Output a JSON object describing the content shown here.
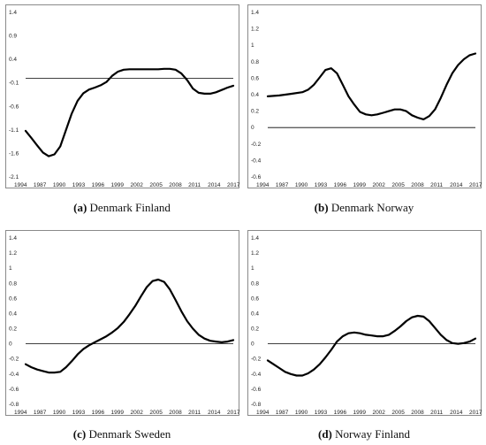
{
  "chart_data": [
    {
      "type": "line",
      "caption_letter": "(a)",
      "caption_text": " Denmark Finland",
      "x_ticks": [
        "1994",
        "1987",
        "1990",
        "1993",
        "1996",
        "1999",
        "2002",
        "2005",
        "2008",
        "2011",
        "2014",
        "2017"
      ],
      "y_ticks": [
        "1.4",
        "0.9",
        "0.4",
        "-0.1",
        "-0.6",
        "-1.1",
        "-1.6",
        "-2.1"
      ],
      "ylim": [
        -2.1,
        1.4
      ],
      "xlim": [
        1984,
        2020
      ],
      "series": [
        {
          "color": "#000000",
          "x": [
            1984,
            1985,
            1986,
            1987,
            1988,
            1989,
            1990,
            1991,
            1992,
            1993,
            1994,
            1995,
            1996,
            1997,
            1998,
            1999,
            2000,
            2001,
            2002,
            2003,
            2005,
            2007,
            2008,
            2009,
            2010,
            2011,
            2012,
            2013,
            2014,
            2015,
            2016,
            2017,
            2018,
            2019,
            2020
          ],
          "y": [
            -1.12,
            -1.27,
            -1.43,
            -1.58,
            -1.66,
            -1.62,
            -1.45,
            -1.1,
            -0.75,
            -0.48,
            -0.32,
            -0.24,
            -0.2,
            -0.15,
            -0.08,
            0.05,
            0.14,
            0.18,
            0.19,
            0.19,
            0.19,
            0.19,
            0.2,
            0.2,
            0.18,
            0.1,
            -0.04,
            -0.22,
            -0.31,
            -0.33,
            -0.33,
            -0.3,
            -0.25,
            -0.2,
            -0.16
          ]
        }
      ]
    },
    {
      "type": "line",
      "caption_letter": "(b)",
      "caption_text": " Denmark Norway",
      "x_ticks": [
        "1994",
        "1987",
        "1990",
        "1993",
        "1996",
        "1999",
        "2002",
        "2005",
        "2008",
        "2011",
        "2014",
        "2017"
      ],
      "y_ticks": [
        "1.4",
        "1.2",
        "1",
        "0.8",
        "0.6",
        "0.4",
        "0.2",
        "0",
        "-0.2",
        "-0.4",
        "-0.6"
      ],
      "ylim": [
        -0.6,
        1.4
      ],
      "xlim": [
        1984,
        2020
      ],
      "series": [
        {
          "color": "#000000",
          "x": [
            1984,
            1986,
            1988,
            1990,
            1991,
            1992,
            1993,
            1994,
            1995,
            1996,
            1997,
            1998,
            1999,
            2000,
            2001,
            2002,
            2003,
            2004,
            2005,
            2006,
            2007,
            2008,
            2009,
            2010,
            2011,
            2012,
            2013,
            2014,
            2015,
            2016,
            2017,
            2018,
            2019,
            2020
          ],
          "y": [
            0.38,
            0.39,
            0.41,
            0.43,
            0.46,
            0.52,
            0.61,
            0.7,
            0.72,
            0.66,
            0.52,
            0.38,
            0.28,
            0.19,
            0.16,
            0.15,
            0.16,
            0.18,
            0.2,
            0.22,
            0.22,
            0.2,
            0.15,
            0.12,
            0.1,
            0.14,
            0.22,
            0.36,
            0.52,
            0.66,
            0.76,
            0.83,
            0.88,
            0.9
          ]
        }
      ]
    },
    {
      "type": "line",
      "caption_letter": "(c)",
      "caption_text": " Denmark Sweden",
      "x_ticks": [
        "1994",
        "1987",
        "1990",
        "1993",
        "1996",
        "1999",
        "2002",
        "2005",
        "2008",
        "2011",
        "2014",
        "2017"
      ],
      "y_ticks": [
        "1.4",
        "1.2",
        "1",
        "0.8",
        "0.6",
        "0.4",
        "0.2",
        "0",
        "-0.2",
        "-0.4",
        "-0.6",
        "-0.8"
      ],
      "ylim": [
        -0.8,
        1.4
      ],
      "xlim": [
        1984,
        2020
      ],
      "series": [
        {
          "color": "#000000",
          "x": [
            1984,
            1985,
            1986,
            1987,
            1988,
            1989,
            1990,
            1991,
            1992,
            1993,
            1994,
            1995,
            1996,
            1997,
            1998,
            1999,
            2000,
            2001,
            2002,
            2003,
            2004,
            2005,
            2006,
            2007,
            2008,
            2009,
            2010,
            2011,
            2012,
            2013,
            2014,
            2015,
            2016,
            2017,
            2018,
            2019,
            2020
          ],
          "y": [
            -0.27,
            -0.31,
            -0.34,
            -0.36,
            -0.38,
            -0.38,
            -0.37,
            -0.31,
            -0.23,
            -0.14,
            -0.07,
            -0.02,
            0.02,
            0.06,
            0.1,
            0.15,
            0.21,
            0.29,
            0.39,
            0.5,
            0.63,
            0.75,
            0.83,
            0.85,
            0.82,
            0.72,
            0.58,
            0.43,
            0.3,
            0.2,
            0.12,
            0.07,
            0.04,
            0.03,
            0.02,
            0.03,
            0.05
          ]
        }
      ]
    },
    {
      "type": "line",
      "caption_letter": "(d)",
      "caption_text": " Norway Finland",
      "x_ticks": [
        "1994",
        "1987",
        "1990",
        "1993",
        "1996",
        "1999",
        "2002",
        "2005",
        "2008",
        "2011",
        "2014",
        "2017"
      ],
      "y_ticks": [
        "1.4",
        "1.2",
        "1",
        "0.8",
        "0.6",
        "0.4",
        "0.2",
        "0",
        "-0.2",
        "-0.4",
        "-0.6",
        "-0.8"
      ],
      "ylim": [
        -0.8,
        1.4
      ],
      "xlim": [
        1984,
        2020
      ],
      "series": [
        {
          "color": "#000000",
          "x": [
            1984,
            1985,
            1986,
            1987,
            1988,
            1989,
            1990,
            1991,
            1992,
            1993,
            1994,
            1995,
            1996,
            1997,
            1998,
            1999,
            2000,
            2001,
            2002,
            2003,
            2004,
            2005,
            2006,
            2007,
            2008,
            2009,
            2010,
            2011,
            2012,
            2013,
            2014,
            2015,
            2016,
            2017,
            2018,
            2019,
            2020
          ],
          "y": [
            -0.22,
            -0.27,
            -0.32,
            -0.37,
            -0.4,
            -0.42,
            -0.42,
            -0.39,
            -0.34,
            -0.27,
            -0.18,
            -0.08,
            0.03,
            0.1,
            0.14,
            0.15,
            0.14,
            0.12,
            0.11,
            0.1,
            0.1,
            0.12,
            0.17,
            0.23,
            0.3,
            0.35,
            0.37,
            0.36,
            0.3,
            0.21,
            0.12,
            0.05,
            0.01,
            0.0,
            0.01,
            0.03,
            0.07
          ]
        }
      ]
    }
  ]
}
